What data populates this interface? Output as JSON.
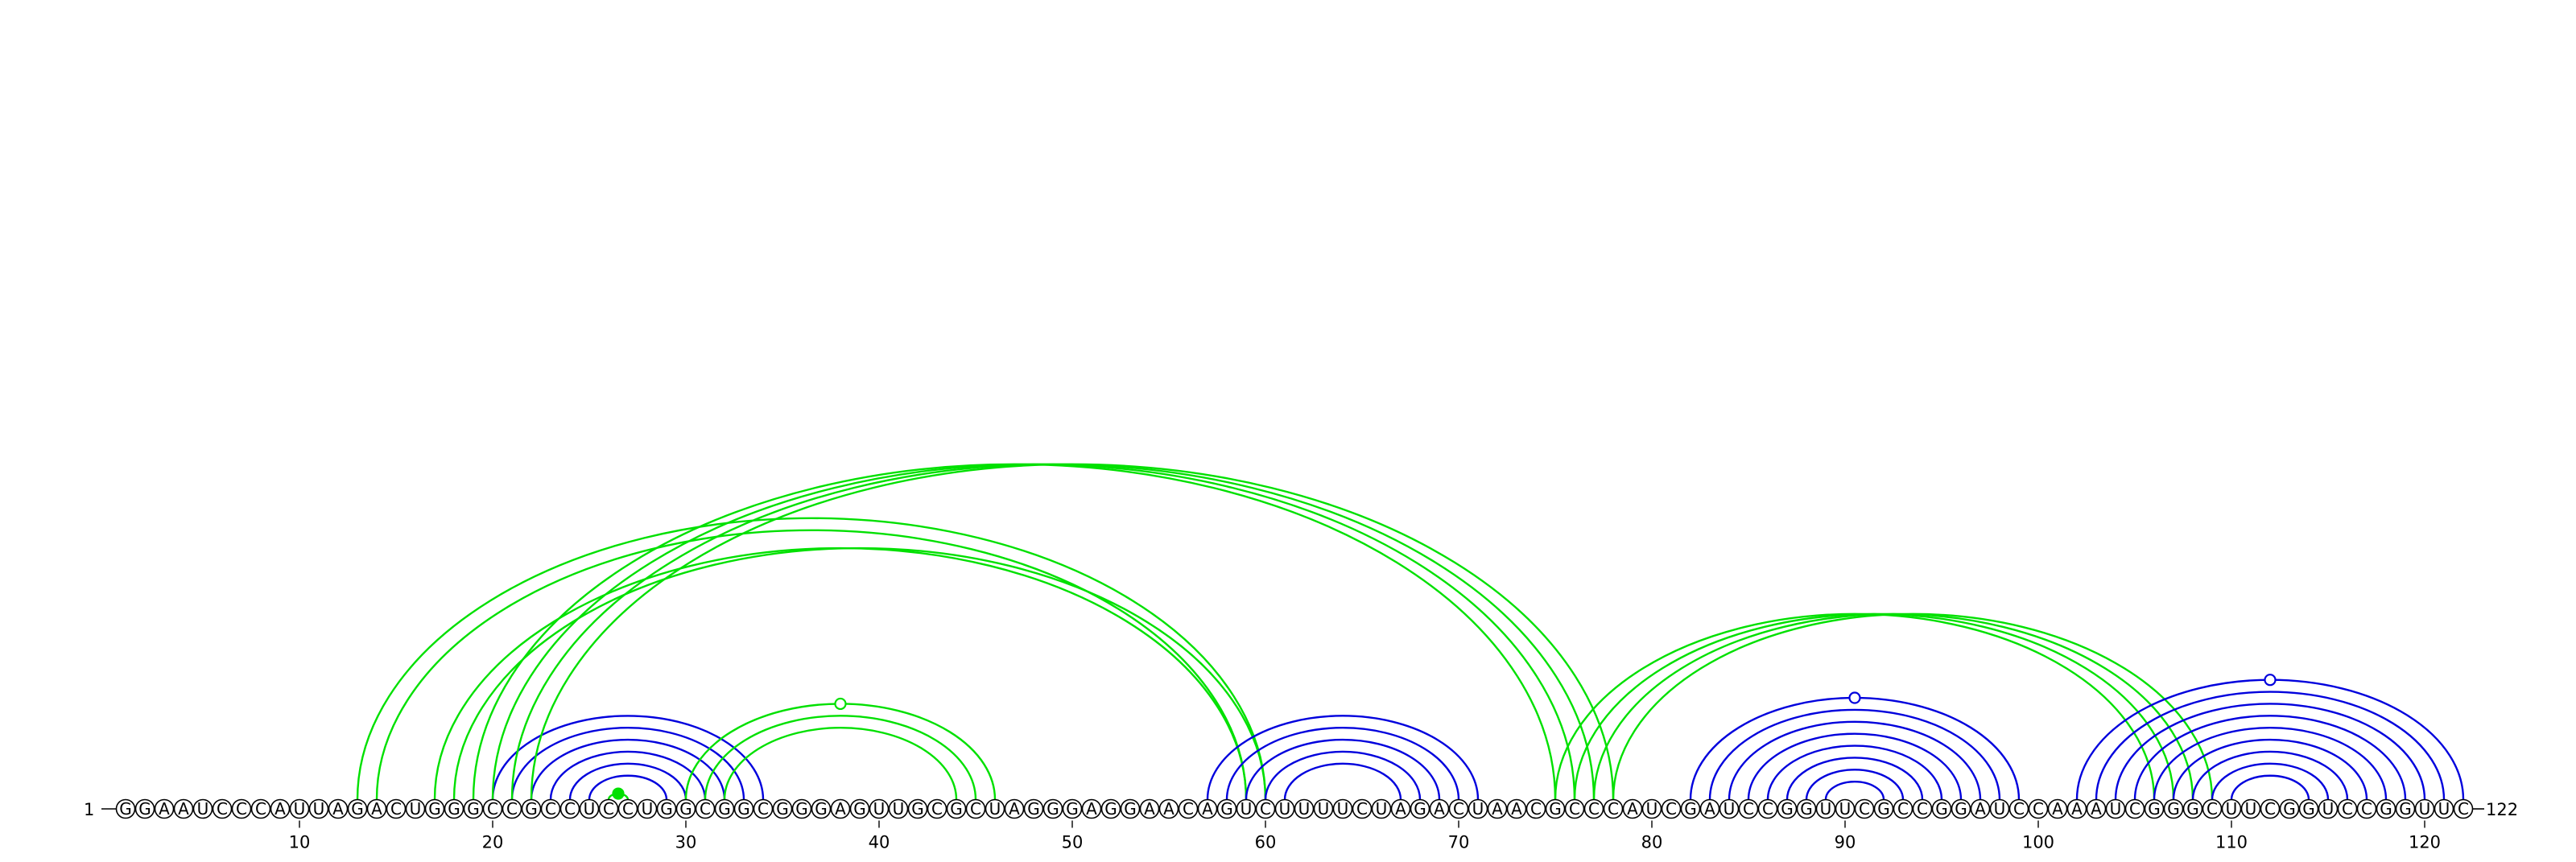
{
  "sequence": "GGAAUCCCAUUAGACUGGGCCGCCUCCUGGCGGCGGGAGUUGCGCUAGGGAGGAACAGUCUUUUCUAGACUAACGCCCAUCGAUCCGGUUCGCCGGAUCCAAAUCGGGCUUCGGUCCGGUUC",
  "start_label": "1",
  "end_label": "122",
  "tick_positions": [
    10,
    20,
    30,
    40,
    50,
    60,
    70,
    80,
    90,
    100,
    110,
    120
  ],
  "colors": {
    "blue": "#0000dd",
    "green": "#00e000",
    "nucleotide_outline": "#000000"
  },
  "helices": [
    {
      "color": "blue",
      "side": "upper",
      "pairs": [
        [
          20,
          34
        ],
        [
          21,
          33
        ],
        [
          22,
          32
        ],
        [
          23,
          31
        ],
        [
          24,
          30
        ],
        [
          25,
          29
        ]
      ]
    },
    {
      "color": "green",
      "side": "upper",
      "pairs": [
        [
          26,
          27
        ]
      ],
      "markers": [
        {
          "pos": 26.5,
          "filled": true
        }
      ]
    },
    {
      "color": "green",
      "side": "upper",
      "pairs": [
        [
          30,
          46
        ],
        [
          31,
          45
        ],
        [
          32,
          44
        ]
      ],
      "markers": [
        {
          "pos": 38,
          "filled": false
        }
      ]
    },
    {
      "color": "green",
      "side": "upper",
      "pairs": [
        [
          13,
          60
        ],
        [
          14,
          59
        ],
        [
          17,
          59
        ],
        [
          18,
          60
        ]
      ]
    },
    {
      "color": "green",
      "side": "upper",
      "pairs": [
        [
          19,
          75
        ],
        [
          20,
          76
        ],
        [
          21,
          77
        ],
        [
          22,
          78
        ]
      ]
    },
    {
      "color": "blue",
      "side": "upper",
      "pairs": [
        [
          57,
          71
        ],
        [
          58,
          70
        ],
        [
          59,
          69
        ],
        [
          60,
          68
        ],
        [
          61,
          67
        ]
      ]
    },
    {
      "color": "green",
      "side": "upper",
      "pairs": [
        [
          75,
          106
        ],
        [
          76,
          107
        ],
        [
          77,
          108
        ],
        [
          78,
          109
        ]
      ]
    },
    {
      "color": "blue",
      "side": "upper",
      "pairs": [
        [
          82,
          99
        ],
        [
          83,
          98
        ],
        [
          84,
          97
        ],
        [
          85,
          96
        ],
        [
          86,
          95
        ],
        [
          87,
          94
        ],
        [
          88,
          93
        ],
        [
          89,
          92
        ]
      ],
      "markers": [
        {
          "pos": 90.5,
          "filled": false
        }
      ]
    },
    {
      "color": "blue",
      "side": "upper",
      "pairs": [
        [
          102,
          122
        ],
        [
          103,
          121
        ],
        [
          104,
          120
        ],
        [
          105,
          119
        ],
        [
          106,
          118
        ],
        [
          107,
          117
        ],
        [
          108,
          116
        ],
        [
          109,
          115
        ],
        [
          110,
          114
        ]
      ],
      "markers": [
        {
          "pos": 112,
          "filled": false
        }
      ]
    }
  ]
}
